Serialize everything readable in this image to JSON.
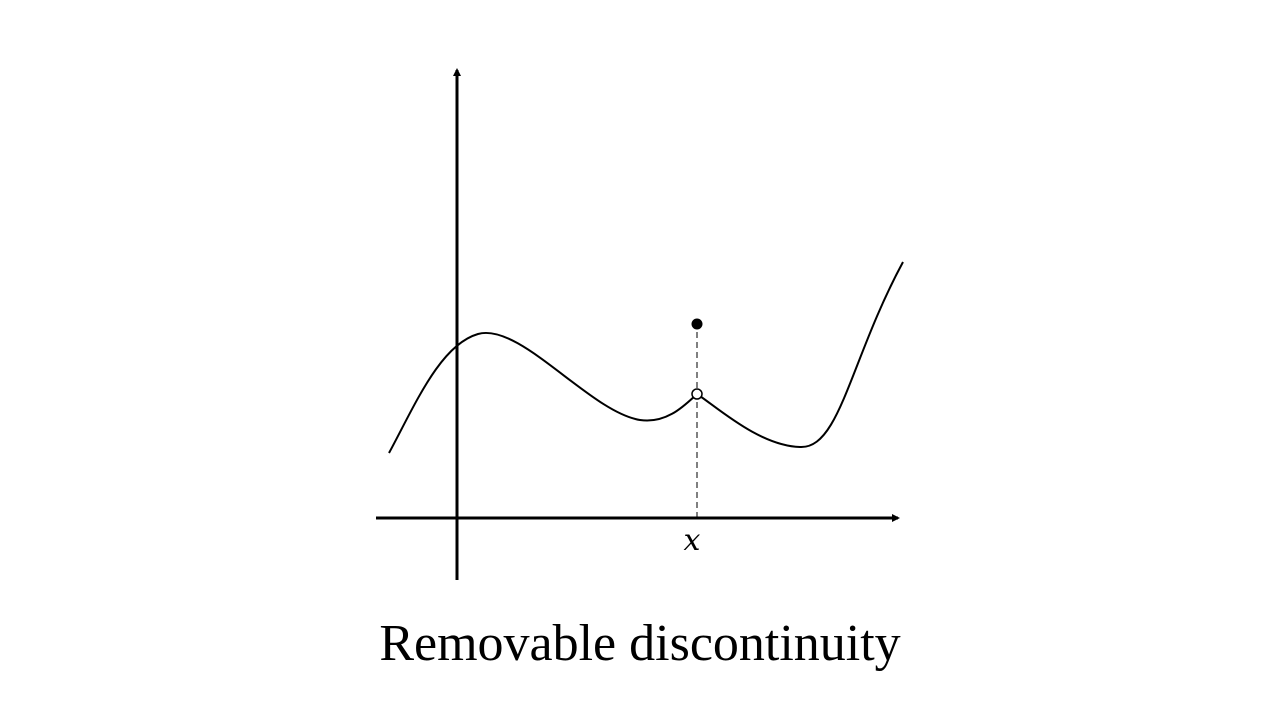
{
  "diagram": {
    "x_label": "x",
    "caption": "Removable discontinuity",
    "colors": {
      "ink": "#000000",
      "background": "#ffffff",
      "hole_fill": "#ffffff"
    },
    "points": {
      "hole": "open",
      "defined_value": "filled"
    }
  }
}
